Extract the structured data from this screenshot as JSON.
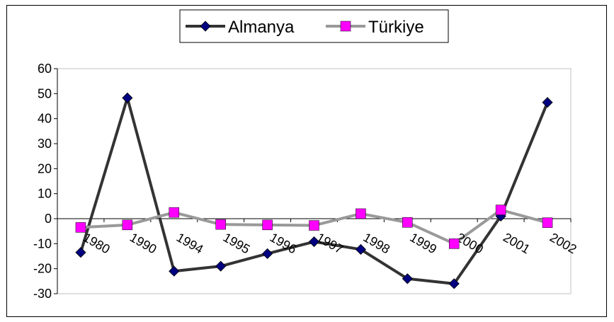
{
  "chart_data": {
    "type": "line",
    "categories": [
      "1980",
      "1990",
      "1994",
      "1995",
      "1996",
      "1997",
      "1998",
      "1999",
      "2000",
      "2001",
      "2002"
    ],
    "series": [
      {
        "name": "Almanya",
        "color": "#000080",
        "line_color": "#333333",
        "marker": "diamond",
        "values": [
          -13.5,
          48.3,
          -21.0,
          -19.0,
          -14.0,
          -9.2,
          -12.3,
          -24.0,
          -26.0,
          1.0,
          46.5
        ]
      },
      {
        "name": "Türkiye",
        "color": "#ff00ff",
        "line_color": "#999999",
        "marker": "square",
        "values": [
          -3.5,
          -2.5,
          2.5,
          -2.3,
          -2.5,
          -2.7,
          2.0,
          -1.5,
          -10.0,
          3.5,
          -1.6
        ]
      }
    ],
    "ylim": [
      -30,
      60
    ],
    "yticks": [
      60,
      50,
      40,
      30,
      20,
      10,
      0,
      -10,
      -20,
      -30
    ],
    "legend_position": "top-center",
    "grid": false
  }
}
